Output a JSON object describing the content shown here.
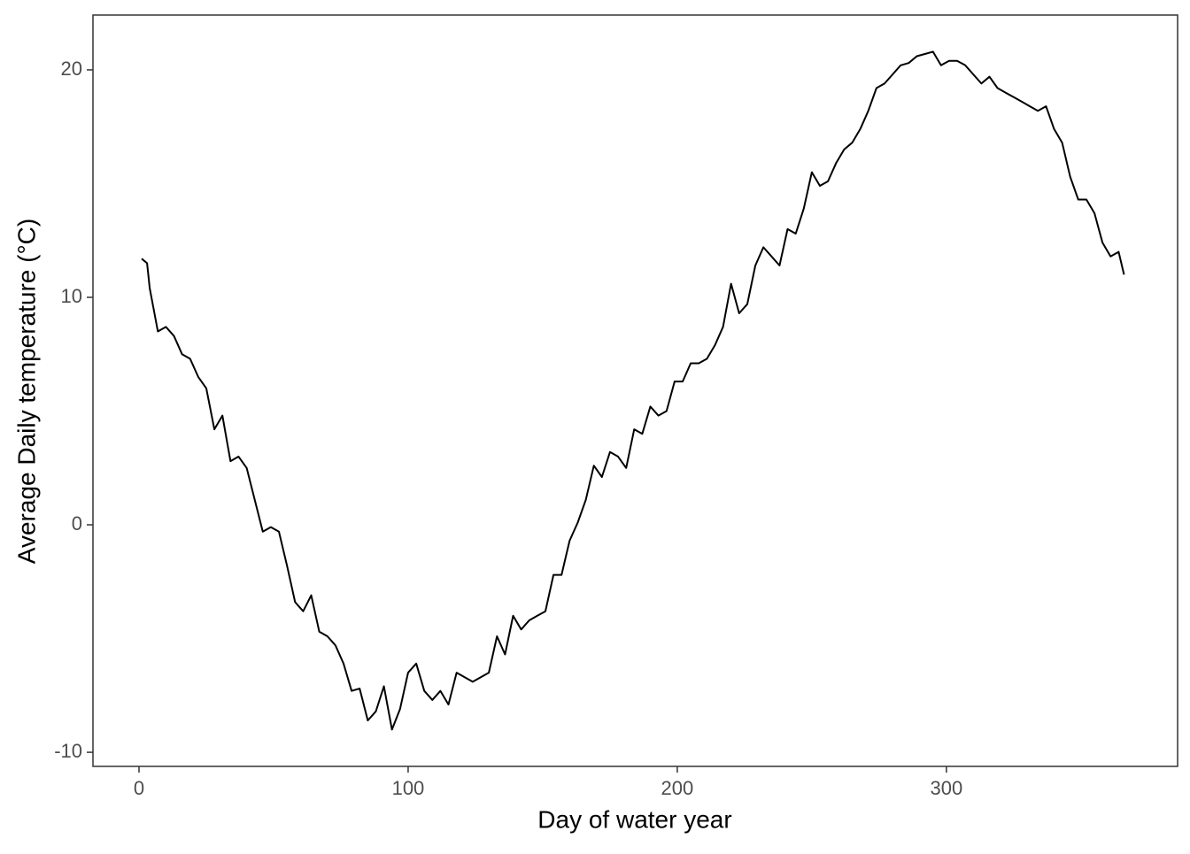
{
  "chart_data": {
    "type": "line",
    "x_label": "Day of water year",
    "y_label": "Average Daily temperature (°C)",
    "xlim": [
      -17.1,
      385.9
    ],
    "xticks": [
      0,
      100,
      200,
      300
    ],
    "ylim": [
      -10.62,
      22.41
    ],
    "yticks": [
      -10,
      0,
      10,
      20
    ],
    "series": [
      {
        "color": "#000000",
        "x": [
          1,
          3,
          4,
          7,
          10,
          13,
          16,
          19,
          22,
          25,
          28,
          31,
          34,
          37,
          40,
          43,
          46,
          49,
          52,
          55,
          58,
          61,
          64,
          67,
          70,
          73,
          76,
          79,
          82,
          85,
          88,
          91,
          94,
          97,
          100,
          103,
          106,
          109,
          112,
          115,
          118,
          121,
          124,
          127,
          130,
          133,
          136,
          139,
          142,
          145,
          148,
          151,
          154,
          157,
          160,
          163,
          166,
          169,
          172,
          175,
          178,
          181,
          184,
          187,
          190,
          193,
          196,
          199,
          202,
          205,
          208,
          211,
          214,
          217,
          220,
          223,
          226,
          229,
          232,
          235,
          238,
          241,
          244,
          247,
          250,
          253,
          256,
          259,
          262,
          265,
          268,
          271,
          274,
          277,
          280,
          283,
          286,
          289,
          292,
          295,
          298,
          301,
          304,
          307,
          310,
          313,
          316,
          319,
          322,
          325,
          328,
          331,
          334,
          337,
          340,
          343,
          346,
          349,
          352,
          355,
          358,
          361,
          364,
          366
        ],
        "values": [
          11.7,
          11.5,
          10.4,
          8.5,
          8.7,
          8.3,
          7.5,
          7.3,
          6.5,
          6.0,
          4.2,
          4.8,
          2.8,
          3.0,
          2.5,
          1.1,
          -0.3,
          -0.1,
          -0.3,
          -1.8,
          -3.4,
          -3.8,
          -3.1,
          -4.7,
          -4.9,
          -5.3,
          -6.1,
          -7.3,
          -7.2,
          -8.6,
          -8.2,
          -7.1,
          -9.0,
          -8.1,
          -6.5,
          -6.1,
          -7.3,
          -7.7,
          -7.3,
          -7.9,
          -6.5,
          -6.7,
          -6.9,
          -6.7,
          -6.5,
          -4.9,
          -5.7,
          -4.0,
          -4.6,
          -4.2,
          -4.0,
          -3.8,
          -2.2,
          -2.2,
          -0.7,
          0.1,
          1.1,
          2.6,
          2.1,
          3.2,
          3.0,
          2.5,
          4.2,
          4.0,
          5.2,
          4.8,
          5.0,
          6.3,
          6.3,
          7.1,
          7.1,
          7.3,
          7.9,
          8.7,
          10.6,
          9.3,
          9.7,
          11.4,
          12.2,
          11.8,
          11.4,
          13.0,
          12.8,
          13.9,
          15.5,
          14.9,
          15.1,
          15.9,
          16.5,
          16.8,
          17.4,
          18.2,
          19.2,
          19.4,
          19.8,
          20.2,
          20.3,
          20.6,
          20.7,
          20.8,
          20.2,
          20.4,
          20.4,
          20.2,
          19.8,
          19.4,
          19.7,
          19.2,
          19.0,
          18.8,
          18.6,
          18.4,
          18.2,
          18.4,
          17.4,
          16.8,
          15.3,
          14.3,
          14.3,
          13.7,
          12.4,
          11.8,
          12.0,
          11.0
        ]
      }
    ]
  }
}
